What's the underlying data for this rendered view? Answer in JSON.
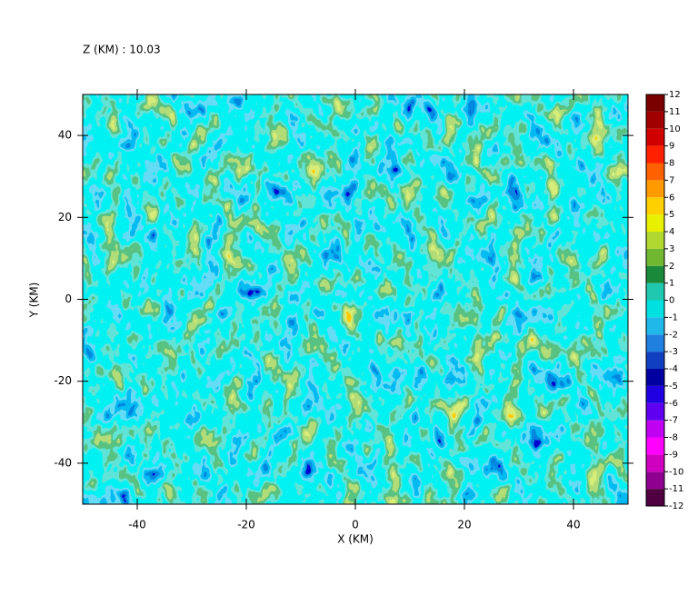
{
  "chart_data": {
    "type": "contour",
    "title": "Z (KM) : 10.03",
    "x_label": "X (KM)",
    "y_label": "Y (KM)",
    "xlim": [
      -50,
      50
    ],
    "xticks": [
      -40,
      -20,
      0,
      20,
      40
    ],
    "ylim": [
      -50,
      50
    ],
    "yticks": [
      -40,
      -20,
      0,
      20,
      40
    ],
    "colorbar": {
      "levels": [
        -12,
        -11,
        -10,
        -9,
        -8,
        -7,
        -6,
        -5,
        -4,
        -3,
        -2,
        -1,
        0,
        1,
        2,
        3,
        4,
        5,
        6,
        7,
        8,
        9,
        10,
        11,
        12
      ],
      "colors": [
        "#500040",
        "#900090",
        "#d000c0",
        "#ff00ff",
        "#c000f0",
        "#6000f0",
        "#2000e0",
        "#0000a0",
        "#1040c0",
        "#2080e0",
        "#20b8e8",
        "#00e0e0",
        "#20c8b0",
        "#1a8a3a",
        "#70b830",
        "#b0d830",
        "#e8f000",
        "#ffd000",
        "#ff9a00",
        "#ff6000",
        "#ff2000",
        "#d00000",
        "#a00000",
        "#7a0000"
      ]
    }
  }
}
